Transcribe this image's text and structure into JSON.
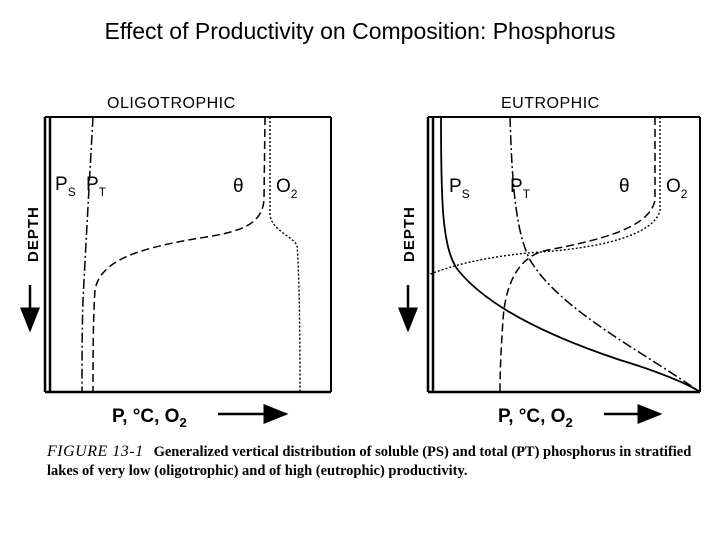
{
  "slide": {
    "title": "Effect of Productivity on Composition: Phosphorus"
  },
  "figure": {
    "panels": [
      {
        "title": "OLIGOTROPHIC",
        "depth_label": "DEPTH",
        "curve_labels": {
          "ps": "P",
          "ps_sub": "S",
          "pt": "P",
          "pt_sub": "T",
          "theta": "θ",
          "o2": "O",
          "o2_sub": "2"
        },
        "x_axis_label": "P, °C, O",
        "x_axis_sub": "2"
      },
      {
        "title": "EUTROPHIC",
        "depth_label": "DEPTH",
        "curve_labels": {
          "ps": "P",
          "ps_sub": "S",
          "pt": "P",
          "pt_sub": "T",
          "theta": "θ",
          "o2": "O",
          "o2_sub": "2"
        },
        "x_axis_label": "P, °C, O",
        "x_axis_sub": "2"
      }
    ],
    "caption": {
      "label": "FIGURE 13-1",
      "text": "Generalized vertical distribution of soluble (PS) and total (PT) phosphorus in stratified lakes of very low (oligotrophic) and of high (eutrophic) productivity."
    }
  }
}
